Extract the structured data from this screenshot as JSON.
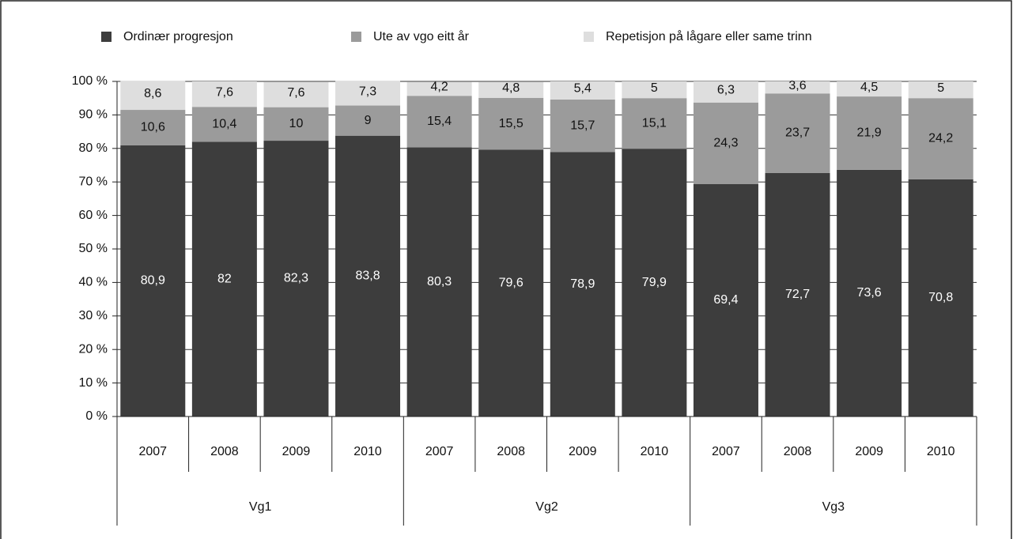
{
  "chart_data": {
    "type": "stacked-bar",
    "categories": [
      "2007",
      "2008",
      "2009",
      "2010",
      "2007",
      "2008",
      "2009",
      "2010",
      "2007",
      "2008",
      "2009",
      "2010"
    ],
    "groups": [
      "Vg1",
      "Vg2",
      "Vg3"
    ],
    "series": [
      {
        "name": "Ordinær progresjon",
        "color": "#3d3d3d",
        "values": [
          80.9,
          82,
          82.3,
          83.8,
          80.3,
          79.6,
          78.9,
          79.9,
          69.4,
          72.7,
          73.6,
          70.8
        ],
        "value_labels": [
          "80,9",
          "82",
          "82,3",
          "83,8",
          "80,3",
          "79,6",
          "78,9",
          "79,9",
          "69,4",
          "72,7",
          "73,6",
          "70,8"
        ]
      },
      {
        "name": "Ute av vgo eitt år",
        "color": "#9b9b9b",
        "values": [
          10.6,
          10.4,
          10,
          9,
          15.4,
          15.5,
          15.7,
          15.1,
          24.3,
          23.7,
          21.9,
          24.2
        ],
        "value_labels": [
          "10,6",
          "10,4",
          "10",
          "9",
          "15,4",
          "15,5",
          "15,7",
          "15,1",
          "24,3",
          "23,7",
          "21,9",
          "24,2"
        ]
      },
      {
        "name": "Repetisjon på lågare eller same trinn",
        "color": "#dedede",
        "values": [
          8.6,
          7.6,
          7.6,
          7.3,
          4.2,
          4.8,
          5.4,
          5,
          6.3,
          3.6,
          4.5,
          5
        ],
        "value_labels": [
          "8,6",
          "7,6",
          "7,6",
          "7,3",
          "4,2",
          "4,8",
          "5,4",
          "5",
          "6,3",
          "3,6",
          "4,5",
          "5"
        ]
      }
    ],
    "ylim": [
      0,
      100
    ],
    "yticks": [
      {
        "value": 0,
        "label": "0 %"
      },
      {
        "value": 10,
        "label": "10 %"
      },
      {
        "value": 20,
        "label": "20 %"
      },
      {
        "value": 30,
        "label": "30 %"
      },
      {
        "value": 40,
        "label": "40 %"
      },
      {
        "value": 50,
        "label": "50 %"
      },
      {
        "value": 60,
        "label": "60 %"
      },
      {
        "value": 70,
        "label": "70 %"
      },
      {
        "value": 80,
        "label": "80 %"
      },
      {
        "value": 90,
        "label": "90 %"
      },
      {
        "value": 100,
        "label": "100 %"
      }
    ],
    "grid": true,
    "legend": "top"
  }
}
